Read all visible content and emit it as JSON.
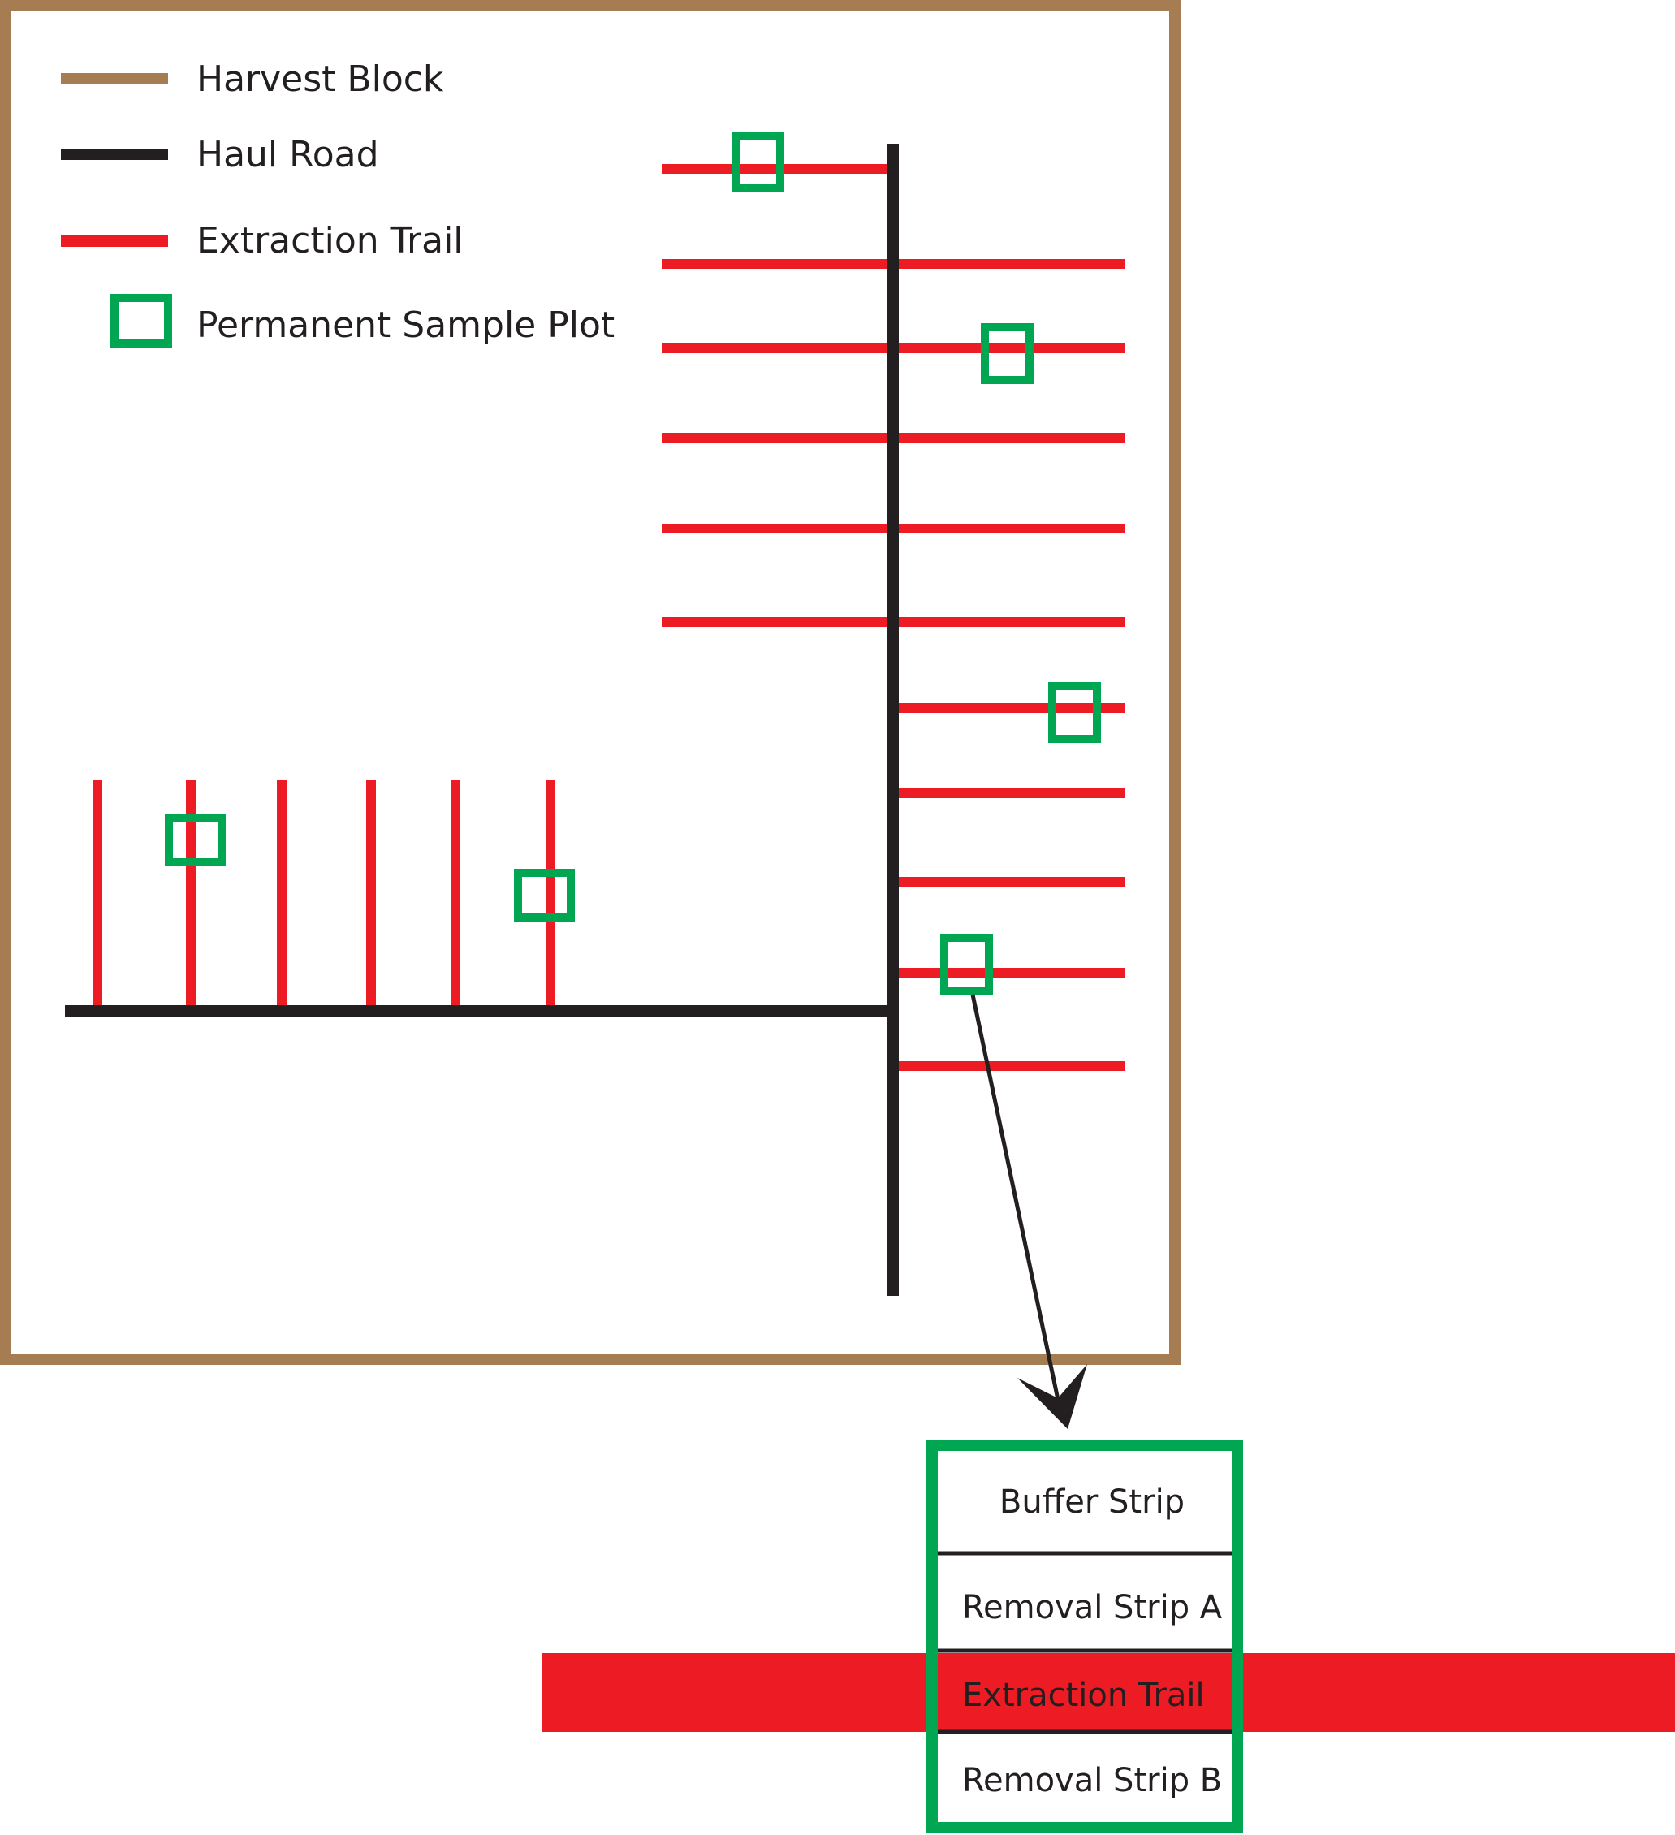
{
  "colors": {
    "harvest_block": "#a67c52",
    "haul_road": "#231f20",
    "extraction_trail": "#ed1c24",
    "sample_plot": "#00a651",
    "divider": "#231f20",
    "text": "#231f20",
    "background": "#ffffff"
  },
  "legend": {
    "harvest_block": "Harvest Block",
    "haul_road": "Haul Road",
    "extraction_trail": "Extraction Trail",
    "sample_plot": "Permanent Sample Plot"
  },
  "detail": {
    "buffer_strip": "Buffer Strip",
    "removal_strip_a": "Removal Strip A",
    "extraction_trail": "Extraction Trail",
    "removal_strip_b": "Removal Strip B"
  }
}
